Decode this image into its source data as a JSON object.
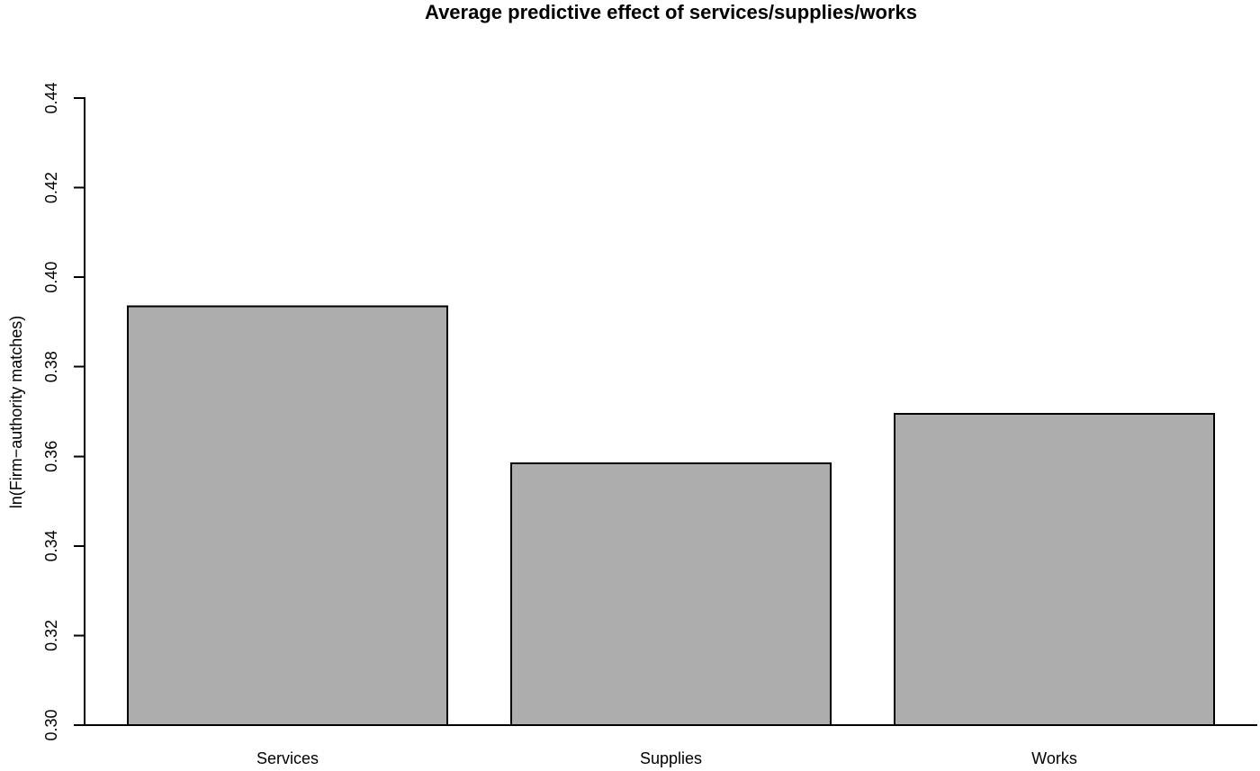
{
  "chart_data": {
    "type": "bar",
    "title": "Average predictive effect of services/supplies/works",
    "ylabel": "ln(Firm−authority matches)",
    "xlabel": "",
    "categories": [
      "Services",
      "Supplies",
      "Works"
    ],
    "values": [
      0.3935,
      0.3585,
      0.3695
    ],
    "ylim": [
      0.3,
      0.44
    ],
    "yticks": [
      "0.30",
      "0.32",
      "0.34",
      "0.36",
      "0.38",
      "0.40",
      "0.42",
      "0.44"
    ],
    "grid": false,
    "legend": "none",
    "colors": {
      "bar_fill": "#ADADAD",
      "bar_border": "#000000",
      "axis": "#000000",
      "background": "#FFFFFF",
      "text": "#000000"
    }
  }
}
